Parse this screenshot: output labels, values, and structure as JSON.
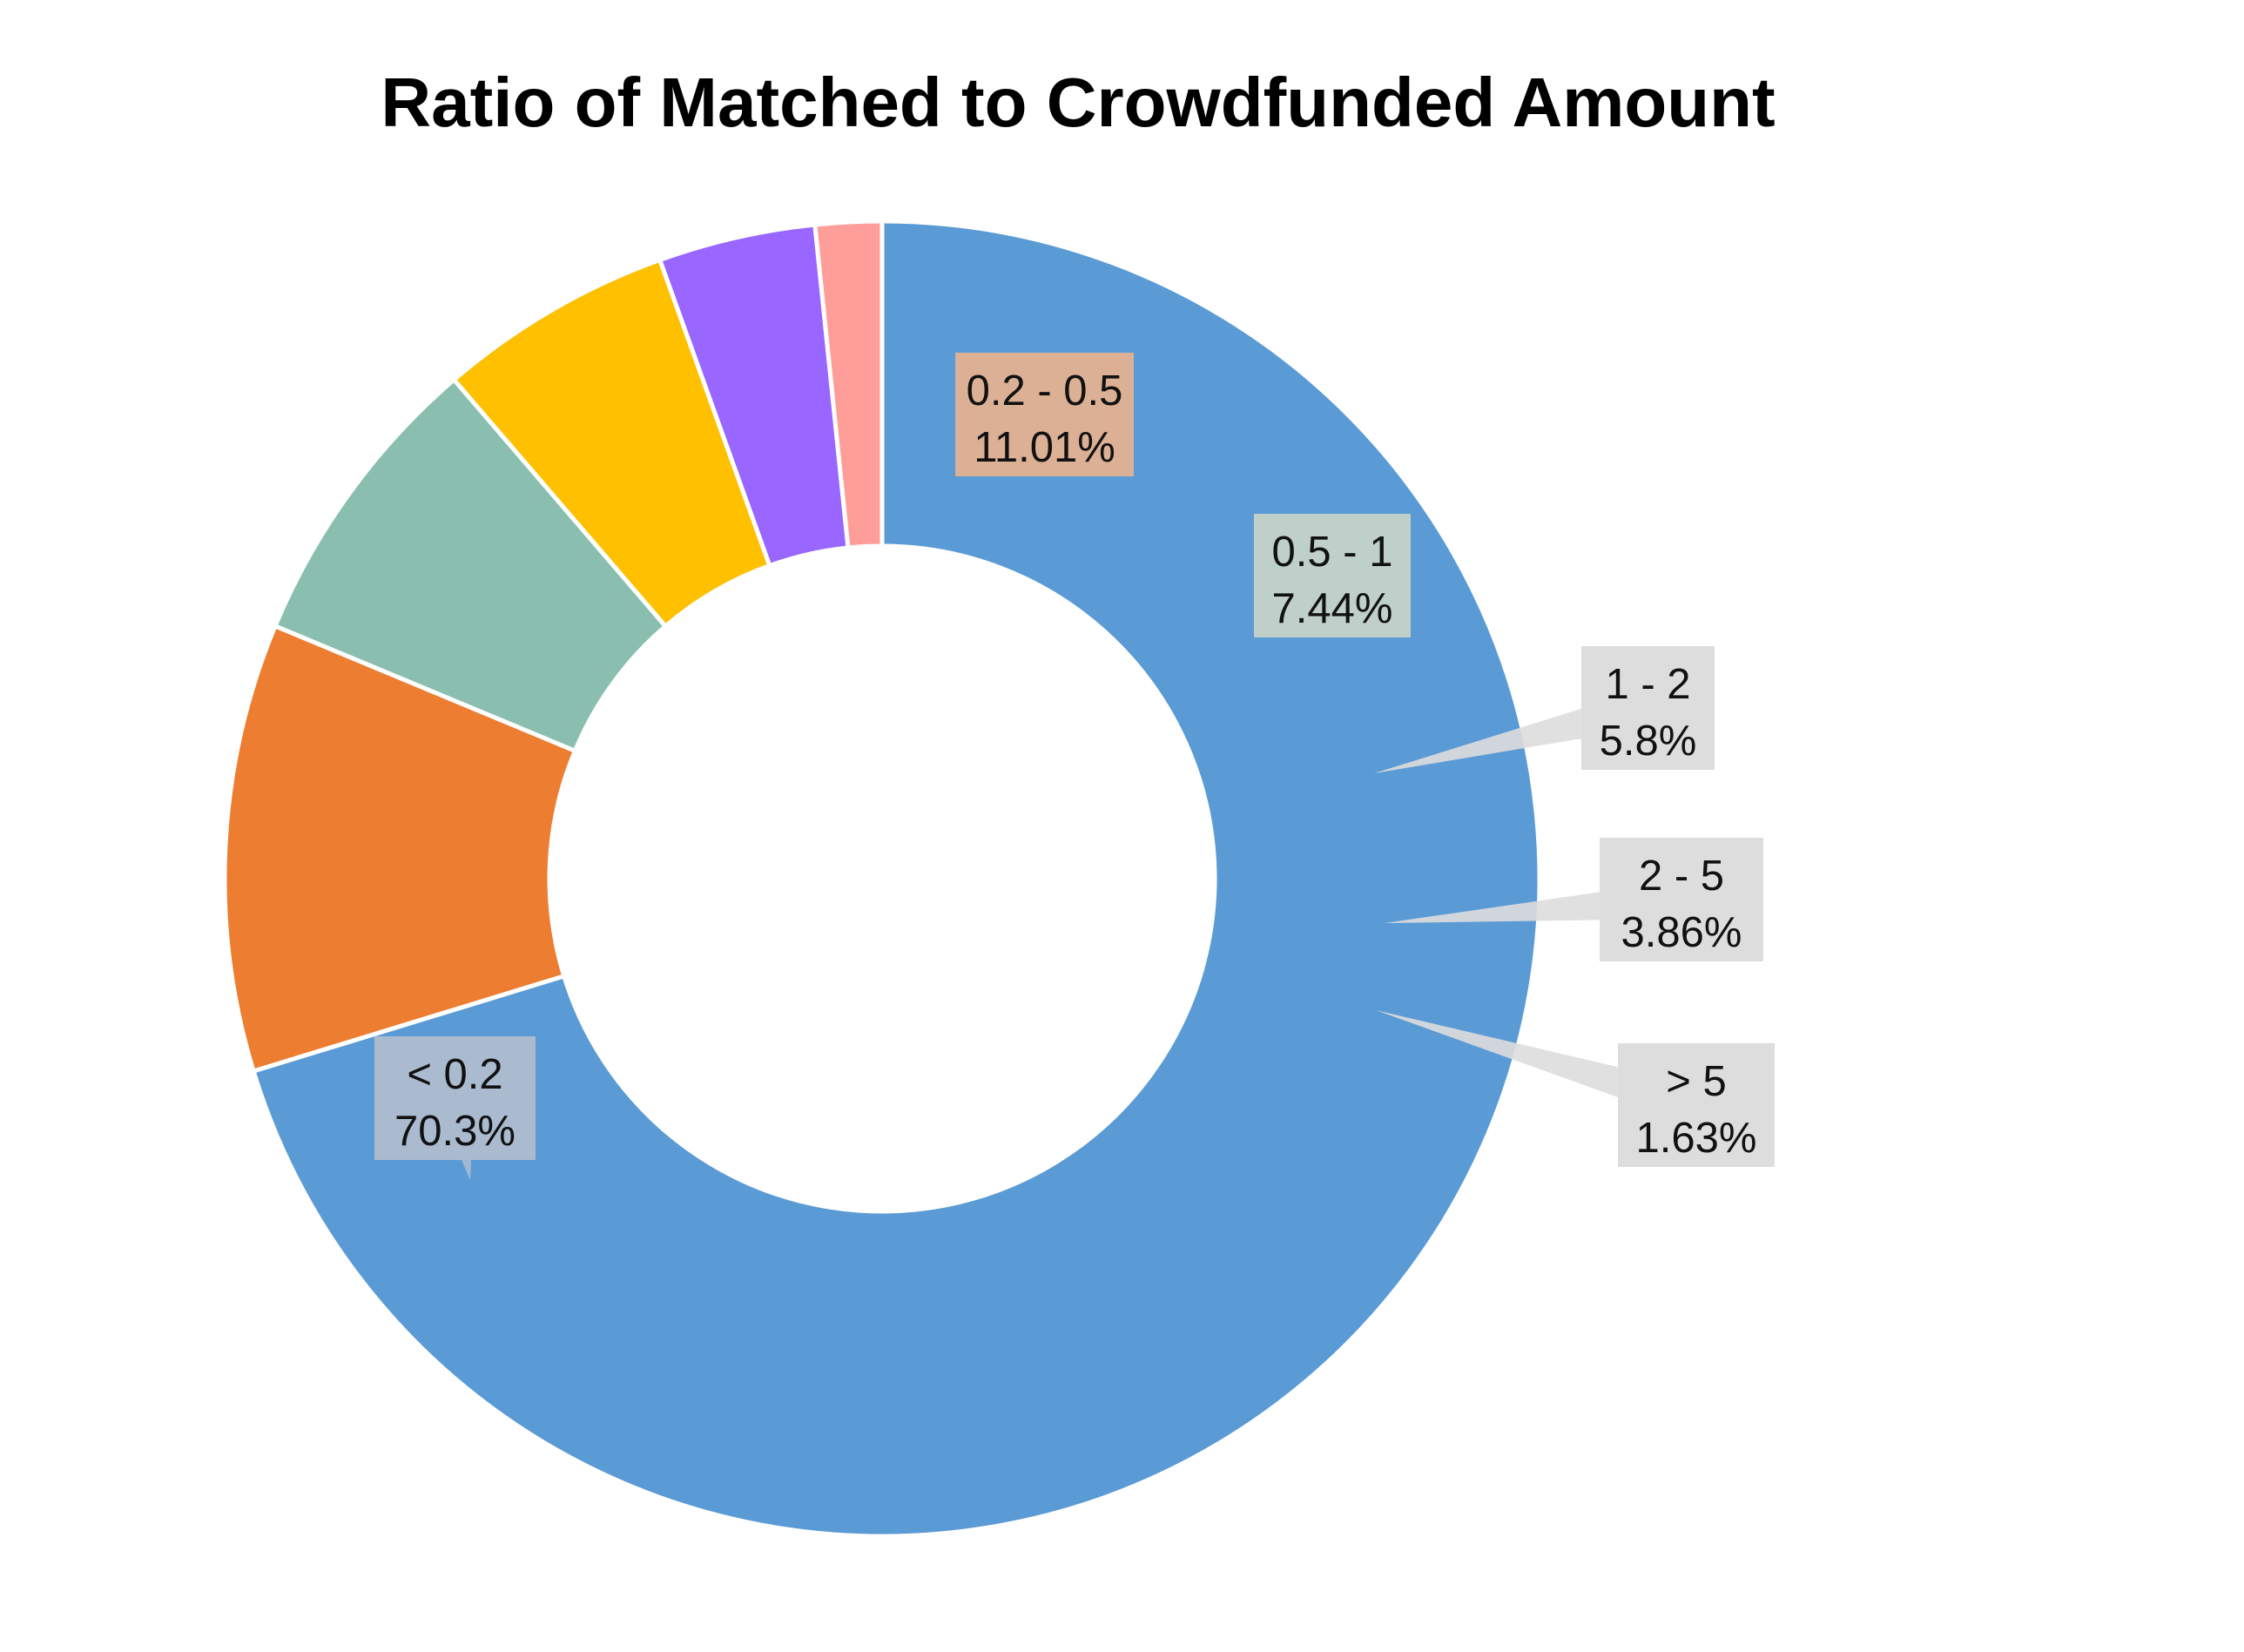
{
  "chart_data": {
    "type": "pie",
    "title": "Ratio of Matched to Crowdfunded Amount",
    "subtitle": "",
    "xlabel": "",
    "ylabel": "",
    "legend": "none",
    "grid": false,
    "categories": [
      "< 0.2",
      "0.2 - 0.5",
      "0.5 - 1",
      "1 - 2",
      "2 - 5",
      "> 5"
    ],
    "values": [
      70.3,
      11.01,
      7.44,
      5.8,
      3.86,
      1.63
    ],
    "value_labels": [
      "70.3%",
      "11.01%",
      "7.44%",
      "5.8%",
      "3.86%",
      "1.63%"
    ],
    "colors": [
      "#5b9bd5",
      "#ed7d31",
      "#8abfb0",
      "#ffc000",
      "#9966ff",
      "#ff9e99"
    ],
    "label_box_colors": [
      "#aabbd0",
      "#dbb095",
      "#bfcfca",
      "#dddddd",
      "#dddddd",
      "#dddddd"
    ],
    "donut": true,
    "start_angle_deg": 90,
    "direction": "clockwise"
  }
}
